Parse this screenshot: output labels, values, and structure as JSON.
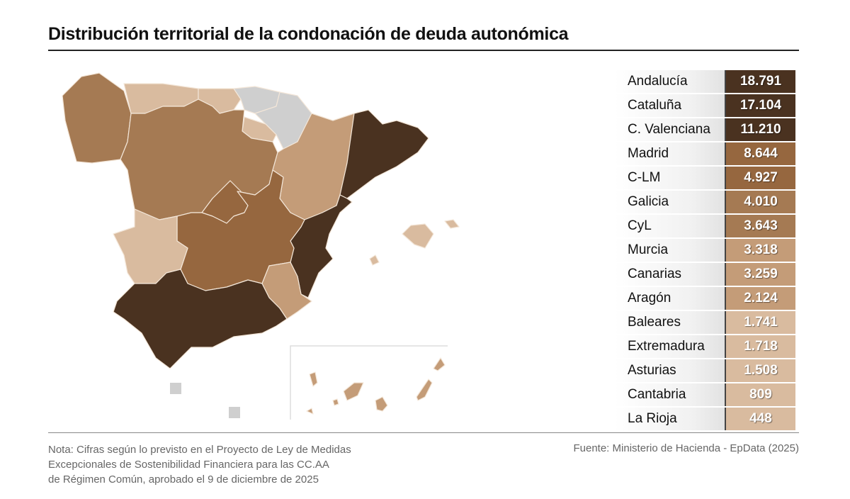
{
  "title": "Distribución territorial de la condonación de deuda autonómica",
  "colors": {
    "dark": "#4a3220",
    "mid": "#96673f",
    "midlight": "#a57a53",
    "light": "#c49c78",
    "lighter": "#d9bb9f",
    "none": "#cfcfcf"
  },
  "table": [
    {
      "label": "Andalucía",
      "value": "18.791",
      "color": "#4a3220"
    },
    {
      "label": "Cataluña",
      "value": "17.104",
      "color": "#4a3220"
    },
    {
      "label": "C. Valenciana",
      "value": "11.210",
      "color": "#4a3220"
    },
    {
      "label": "Madrid",
      "value": "8.644",
      "color": "#96673f"
    },
    {
      "label": "C-LM",
      "value": "4.927",
      "color": "#96673f"
    },
    {
      "label": "Galicia",
      "value": "4.010",
      "color": "#a57a53"
    },
    {
      "label": "CyL",
      "value": "3.643",
      "color": "#a57a53"
    },
    {
      "label": "Murcia",
      "value": "3.318",
      "color": "#c49c78"
    },
    {
      "label": "Canarias",
      "value": "3.259",
      "color": "#c49c78"
    },
    {
      "label": "Aragón",
      "value": "2.124",
      "color": "#c49c78"
    },
    {
      "label": "Baleares",
      "value": "1.741",
      "color": "#d9bb9f"
    },
    {
      "label": "Extremadura",
      "value": "1.718",
      "color": "#d9bb9f"
    },
    {
      "label": "Asturias",
      "value": "1.508",
      "color": "#d9bb9f"
    },
    {
      "label": "Cantabria",
      "value": "809",
      "color": "#d9bb9f"
    },
    {
      "label": "La Rioja",
      "value": "448",
      "color": "#d9bb9f"
    }
  ],
  "map_regions": [
    {
      "region": "Galicia",
      "color": "#a57a53"
    },
    {
      "region": "Asturias",
      "color": "#d9bb9f"
    },
    {
      "region": "Cantabria",
      "color": "#d9bb9f"
    },
    {
      "region": "País Vasco",
      "color": "#cfcfcf"
    },
    {
      "region": "Navarra",
      "color": "#cfcfcf"
    },
    {
      "region": "La Rioja",
      "color": "#d9bb9f"
    },
    {
      "region": "CyL",
      "color": "#a57a53"
    },
    {
      "region": "Aragón",
      "color": "#c49c78"
    },
    {
      "region": "Cataluña",
      "color": "#4a3220"
    },
    {
      "region": "C. Valenciana",
      "color": "#4a3220"
    },
    {
      "region": "Madrid",
      "color": "#96673f"
    },
    {
      "region": "C-LM",
      "color": "#96673f"
    },
    {
      "region": "Extremadura",
      "color": "#d9bb9f"
    },
    {
      "region": "Murcia",
      "color": "#c49c78"
    },
    {
      "region": "Andalucía",
      "color": "#4a3220"
    },
    {
      "region": "Baleares",
      "color": "#d9bb9f"
    },
    {
      "region": "Canarias",
      "color": "#c49c78"
    },
    {
      "region": "Ceuta",
      "color": "#cfcfcf"
    },
    {
      "region": "Melilla",
      "color": "#cfcfcf"
    }
  ],
  "footer": {
    "note": [
      "Nota: Cifras según lo previsto en el Proyecto de Ley de Medidas",
      "Excepcionales de Sostenibilidad Financiera para las CC.AA",
      "de Régimen Común, aprobado el 9 de diciembre de 2025"
    ],
    "source": "Fuente: Ministerio de Hacienda - EpData (2025)"
  }
}
